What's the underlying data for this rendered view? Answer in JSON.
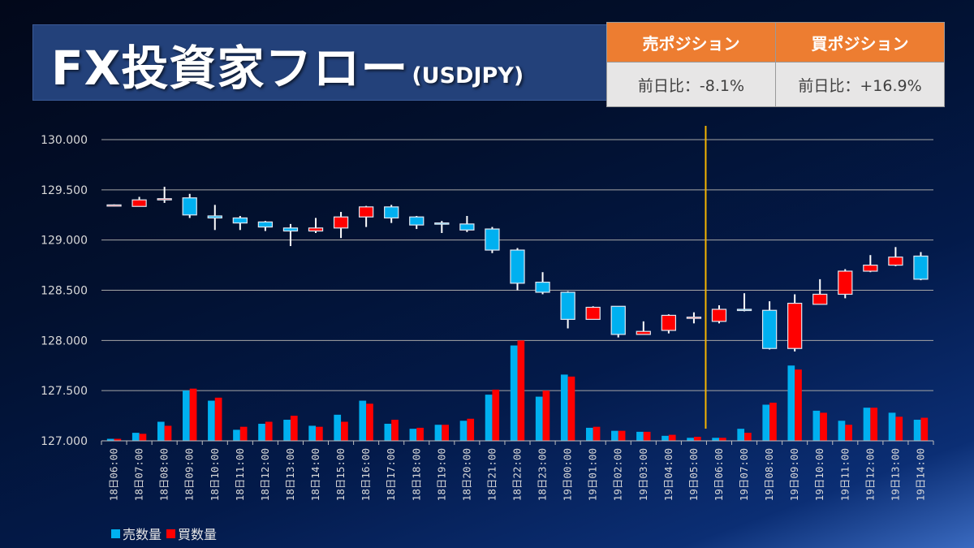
{
  "header": {
    "title": "FX投資家フロー",
    "subtitle": "(USDJPY)"
  },
  "positions": {
    "sell": {
      "label": "売ポジション",
      "change": "前日比：-8.1%"
    },
    "buy": {
      "label": "買ポジション",
      "change": "前日比：+16.9%"
    }
  },
  "colors": {
    "sell": "#00b0f0",
    "buy": "#ff0000",
    "marker_line": "#f5b400",
    "gridline": "#a6a6a6",
    "header_orange": "#ed7d31"
  },
  "chart_data": {
    "type": "candlestick+bar",
    "title": "FX投資家フロー(USDJPY)",
    "ylim": [
      127.0,
      130.0
    ],
    "yticks": [
      "127.000",
      "127.500",
      "128.000",
      "128.500",
      "129.000",
      "129.500",
      "130.000"
    ],
    "ytick_values": [
      127.0,
      127.5,
      128.0,
      128.5,
      129.0,
      129.5,
      130.0
    ],
    "grid": true,
    "categories": [
      "18日06:00",
      "18日07:00",
      "18日08:00",
      "18日09:00",
      "18日10:00",
      "18日11:00",
      "18日12:00",
      "18日13:00",
      "18日14:00",
      "18日15:00",
      "18日16:00",
      "18日17:00",
      "18日18:00",
      "18日19:00",
      "18日20:00",
      "18日21:00",
      "18日22:00",
      "18日23:00",
      "19日00:00",
      "19日01:00",
      "19日02:00",
      "19日03:00",
      "19日04:00",
      "19日05:00",
      "19日06:00",
      "19日07:00",
      "19日08:00",
      "19日09:00",
      "19日10:00",
      "19日11:00",
      "19日12:00",
      "19日13:00",
      "19日14:00"
    ],
    "marker_after_category": "19日05:00",
    "candles": [
      {
        "o": 129.345,
        "h": 129.355,
        "l": 129.335,
        "c": 129.35
      },
      {
        "o": 129.335,
        "h": 129.43,
        "l": 129.335,
        "c": 129.4
      },
      {
        "o": 129.41,
        "h": 129.53,
        "l": 129.37,
        "c": 129.412
      },
      {
        "o": 129.42,
        "h": 129.46,
        "l": 129.22,
        "c": 129.25
      },
      {
        "o": 129.24,
        "h": 129.35,
        "l": 129.1,
        "c": 129.22
      },
      {
        "o": 129.22,
        "h": 129.24,
        "l": 129.1,
        "c": 129.17
      },
      {
        "o": 129.18,
        "h": 129.19,
        "l": 129.09,
        "c": 129.13
      },
      {
        "o": 129.12,
        "h": 129.16,
        "l": 128.94,
        "c": 129.09
      },
      {
        "o": 129.09,
        "h": 129.22,
        "l": 129.07,
        "c": 129.12
      },
      {
        "o": 129.12,
        "h": 129.28,
        "l": 129.02,
        "c": 129.23
      },
      {
        "o": 129.23,
        "h": 129.34,
        "l": 129.13,
        "c": 129.33
      },
      {
        "o": 129.33,
        "h": 129.35,
        "l": 129.17,
        "c": 129.22
      },
      {
        "o": 129.23,
        "h": 129.24,
        "l": 129.11,
        "c": 129.15
      },
      {
        "o": 129.17,
        "h": 129.19,
        "l": 129.07,
        "c": 129.165
      },
      {
        "o": 129.16,
        "h": 129.24,
        "l": 129.08,
        "c": 129.1
      },
      {
        "o": 129.11,
        "h": 129.13,
        "l": 128.87,
        "c": 128.9
      },
      {
        "o": 128.9,
        "h": 128.92,
        "l": 128.5,
        "c": 128.57
      },
      {
        "o": 128.58,
        "h": 128.68,
        "l": 128.46,
        "c": 128.48
      },
      {
        "o": 128.48,
        "h": 128.49,
        "l": 128.12,
        "c": 128.21
      },
      {
        "o": 128.21,
        "h": 128.34,
        "l": 128.21,
        "c": 128.33
      },
      {
        "o": 128.34,
        "h": 128.34,
        "l": 128.03,
        "c": 128.06
      },
      {
        "o": 128.06,
        "h": 128.19,
        "l": 128.06,
        "c": 128.09
      },
      {
        "o": 128.1,
        "h": 128.26,
        "l": 128.07,
        "c": 128.25
      },
      {
        "o": 128.23,
        "h": 128.28,
        "l": 128.17,
        "c": 128.232
      },
      {
        "o": 128.19,
        "h": 128.35,
        "l": 128.17,
        "c": 128.31
      },
      {
        "o": 128.31,
        "h": 128.47,
        "l": 128.29,
        "c": 128.3
      },
      {
        "o": 128.3,
        "h": 128.39,
        "l": 127.91,
        "c": 127.92
      },
      {
        "o": 127.92,
        "h": 128.46,
        "l": 127.89,
        "c": 128.37
      },
      {
        "o": 128.36,
        "h": 128.61,
        "l": 128.36,
        "c": 128.46
      },
      {
        "o": 128.46,
        "h": 128.71,
        "l": 128.42,
        "c": 128.69
      },
      {
        "o": 128.69,
        "h": 128.85,
        "l": 128.68,
        "c": 128.75
      },
      {
        "o": 128.75,
        "h": 128.93,
        "l": 128.74,
        "c": 128.83
      },
      {
        "o": 128.84,
        "h": 128.88,
        "l": 128.6,
        "c": 128.61
      }
    ],
    "series": [
      {
        "name": "売数量",
        "values": [
          127.02,
          127.08,
          127.19,
          127.5,
          127.4,
          127.11,
          127.17,
          127.21,
          127.15,
          127.26,
          127.4,
          127.17,
          127.12,
          127.16,
          127.2,
          127.46,
          127.95,
          127.44,
          127.66,
          127.13,
          127.1,
          127.09,
          127.05,
          127.03,
          127.03,
          127.12,
          127.36,
          127.75,
          127.3,
          127.2,
          127.33,
          127.28,
          127.21
        ]
      },
      {
        "name": "買数量",
        "values": [
          127.02,
          127.07,
          127.15,
          127.52,
          127.43,
          127.14,
          127.19,
          127.25,
          127.14,
          127.19,
          127.37,
          127.21,
          127.13,
          127.16,
          127.22,
          127.51,
          128.0,
          127.5,
          127.64,
          127.14,
          127.1,
          127.09,
          127.06,
          127.04,
          127.03,
          127.08,
          127.38,
          127.71,
          127.28,
          127.16,
          127.33,
          127.24,
          127.23
        ]
      }
    ],
    "legend": [
      "売数量",
      "買数量"
    ],
    "legend_position": "bottom-left"
  }
}
